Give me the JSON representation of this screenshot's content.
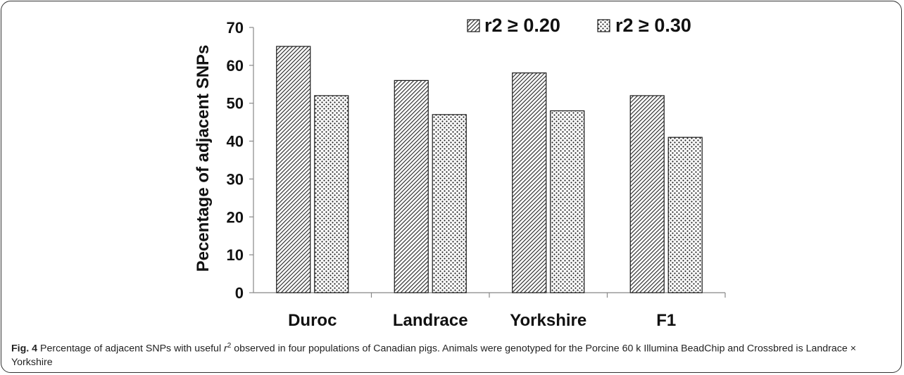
{
  "chart_data": {
    "type": "bar",
    "ylabel": "Pecentage of adjacent SNPs",
    "xlabel": "",
    "ylim": [
      0,
      70
    ],
    "yticks": [
      0,
      10,
      20,
      30,
      40,
      50,
      60,
      70
    ],
    "categories": [
      "Duroc",
      "Landrace",
      "Yorkshire",
      "F1"
    ],
    "series": [
      {
        "name": "r2 ≥ 0.20",
        "values": [
          65,
          56,
          58,
          52
        ],
        "pattern": "diagonal-hatch"
      },
      {
        "name": "r2 ≥ 0.30",
        "values": [
          52,
          47,
          48,
          41
        ],
        "pattern": "dots"
      }
    ],
    "legend_position": "top-right",
    "grid": false,
    "colors": {
      "bar_stroke": "#1a1a1a",
      "pattern_ink": "#222222"
    }
  },
  "caption": {
    "label": "Fig. 4",
    "text_before": " Percentage of adjacent SNPs with useful ",
    "r_symbol": "r",
    "superscript": "2",
    "text_after": " observed in four populations of Canadian pigs. Animals were genotyped for the Porcine 60 k Illumina BeadChip and Crossbred is Landrace × Yorkshire"
  }
}
